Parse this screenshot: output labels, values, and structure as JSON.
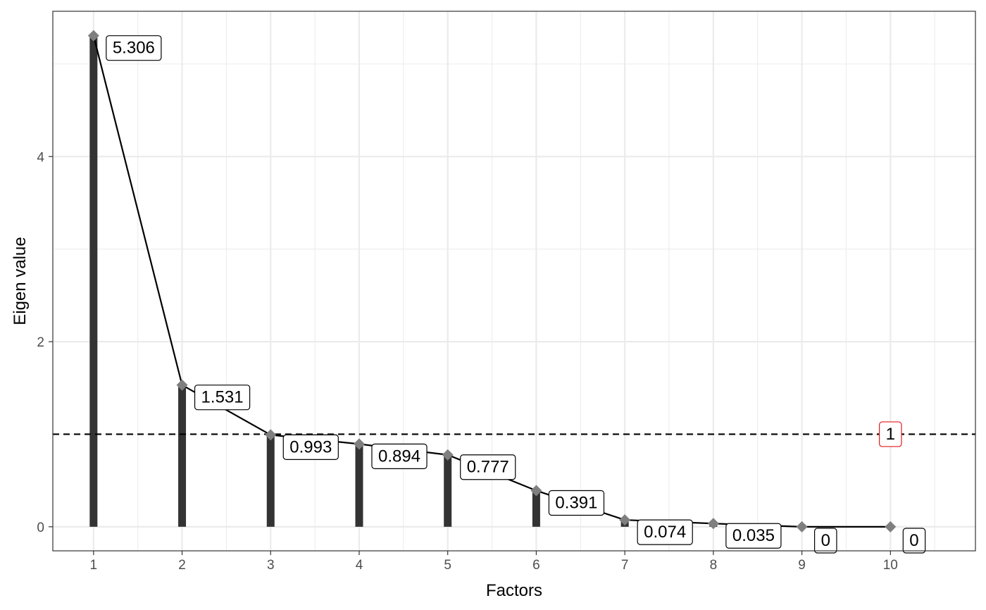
{
  "chart_data": {
    "type": "bar",
    "title": "",
    "xlabel": "Factors",
    "ylabel": "Eigen value",
    "categories": [
      "1",
      "2",
      "3",
      "4",
      "5",
      "6",
      "7",
      "8",
      "9",
      "10"
    ],
    "x": [
      1,
      2,
      3,
      4,
      5,
      6,
      7,
      8,
      9,
      10
    ],
    "values": [
      5.306,
      1.531,
      0.993,
      0.894,
      0.777,
      0.391,
      0.074,
      0.035,
      0,
      0
    ],
    "value_labels": [
      "5.306",
      "1.531",
      "0.993",
      "0.894",
      "0.777",
      "0.391",
      "0.074",
      "0.035",
      "0",
      "0"
    ],
    "overlay": {
      "type": "line",
      "marker": "diamond"
    },
    "xlim": [
      0.54,
      10.96
    ],
    "ylim": [
      -0.26,
      5.57
    ],
    "x_ticks": [
      1,
      2,
      3,
      4,
      5,
      6,
      7,
      8,
      9,
      10
    ],
    "y_ticks": [
      0,
      2,
      4
    ],
    "y_minor_ticks": [
      1,
      3,
      5
    ],
    "grid": true,
    "reference_line": {
      "y": 1,
      "style": "dashed",
      "label": "1",
      "label_x": 10,
      "color": "#e31a1c"
    },
    "colors": {
      "bar": "#333333",
      "line": "#000000",
      "marker": "#7f7f7f",
      "grid": "#ebebeb",
      "reference_label": "#e31a1c"
    }
  }
}
